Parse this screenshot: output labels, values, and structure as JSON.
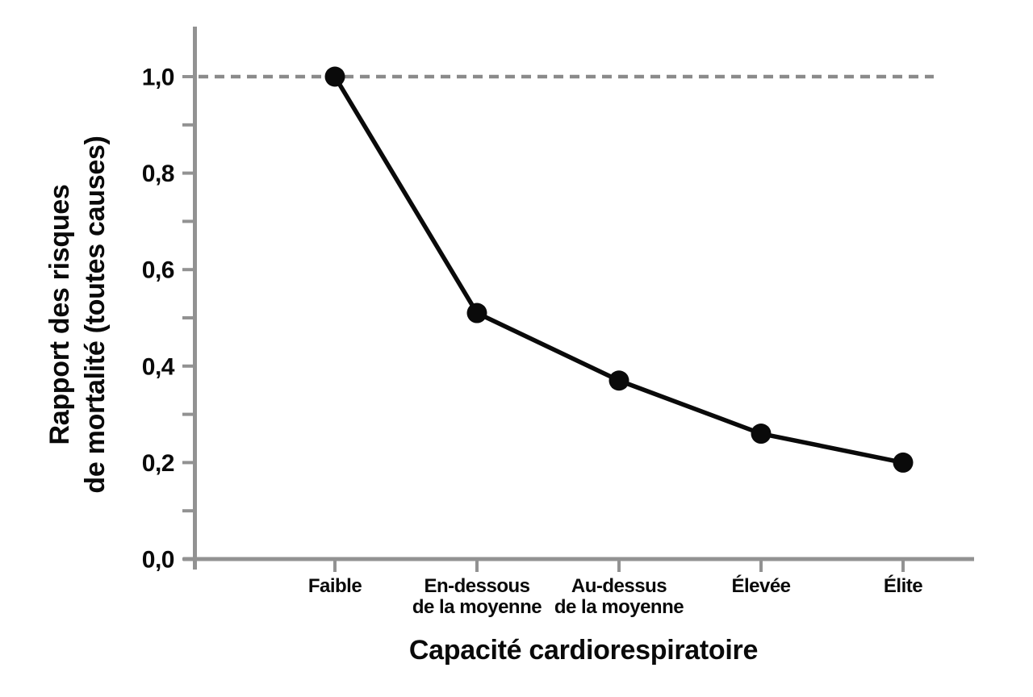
{
  "chart_data": {
    "type": "line",
    "title": "",
    "xlabel": "Capacité cardiorespiratoire",
    "ylabel_lines": [
      "Rapport des risques",
      "de mortalité (toutes causes)"
    ],
    "categories": [
      [
        "Faible"
      ],
      [
        "En-dessous",
        "de la moyenne"
      ],
      [
        "Au-dessus",
        "de la moyenne"
      ],
      [
        "Élevée"
      ],
      [
        "Élite"
      ]
    ],
    "values": [
      1.0,
      0.51,
      0.37,
      0.26,
      0.2
    ],
    "ylim": [
      0,
      1.1
    ],
    "ytick_minor_step": 0.1,
    "ytick_labels": [
      {
        "value": 0,
        "label": "0,0"
      },
      {
        "value": 0.2,
        "label": "0,2"
      },
      {
        "value": 0.4,
        "label": "0,4"
      },
      {
        "value": 0.6,
        "label": "0,6"
      },
      {
        "value": 0.8,
        "label": "0,8"
      },
      {
        "value": 1,
        "label": "1,0"
      }
    ],
    "reference_line": {
      "value": 1.0,
      "style": "dashed"
    },
    "legend": "none",
    "grid": false,
    "colors": {
      "series": "#0a0a0a",
      "text": "#0a0a0a",
      "axis": "#929292",
      "reference": "#8a8a8a",
      "background": "#ffffff"
    }
  }
}
